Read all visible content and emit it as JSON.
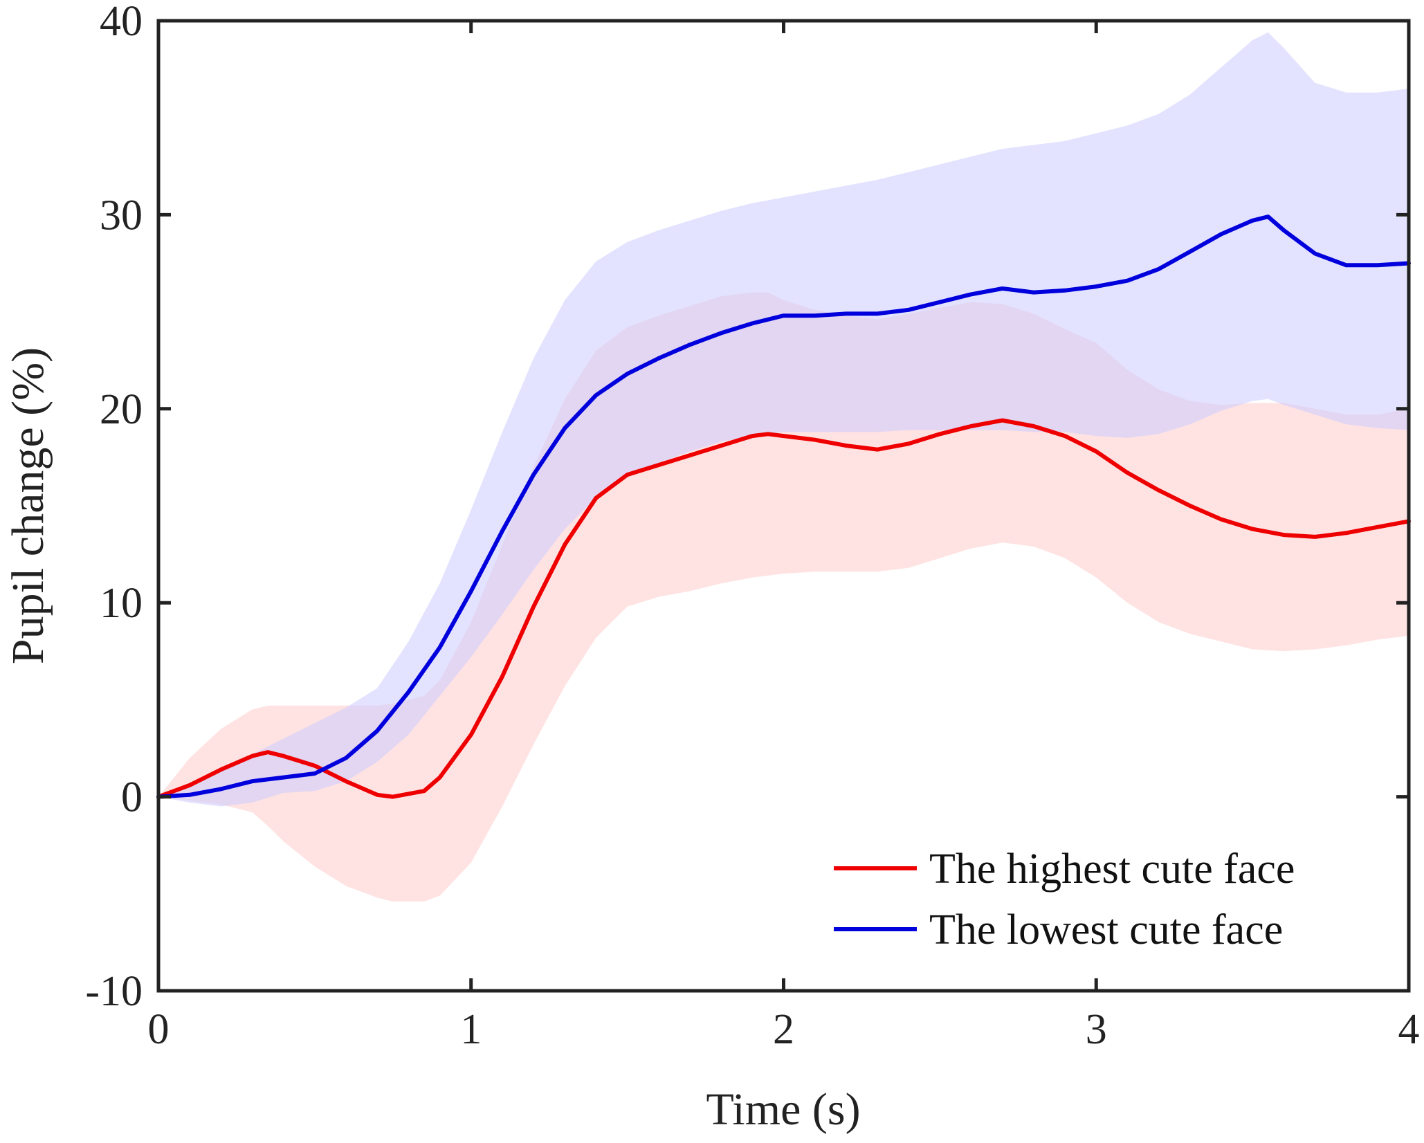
{
  "chart_data": {
    "type": "line",
    "title": "",
    "xlabel": "Time (s)",
    "ylabel": "Pupil change (%)",
    "xlim": [
      0,
      4
    ],
    "ylim": [
      -10,
      40
    ],
    "x_ticks": [
      0,
      1,
      2,
      3,
      4
    ],
    "x_tick_labels": [
      "0",
      "1",
      "2",
      "3",
      "4"
    ],
    "y_ticks": [
      -10,
      0,
      10,
      20,
      30,
      40
    ],
    "y_tick_labels": [
      "-10",
      "0",
      "10",
      "20",
      "30",
      "40"
    ],
    "grid": false,
    "legend_position": "bottom-right",
    "series": [
      {
        "name": "The highest cute face",
        "color": "#ee0000",
        "band_color": "#ffcccc",
        "x": [
          0,
          0.1,
          0.2,
          0.3,
          0.35,
          0.4,
          0.5,
          0.6,
          0.7,
          0.75,
          0.85,
          0.9,
          1.0,
          1.1,
          1.2,
          1.3,
          1.4,
          1.5,
          1.6,
          1.7,
          1.8,
          1.9,
          1.95,
          2.0,
          2.1,
          2.2,
          2.3,
          2.4,
          2.5,
          2.6,
          2.7,
          2.8,
          2.9,
          3.0,
          3.1,
          3.2,
          3.3,
          3.4,
          3.5,
          3.6,
          3.7,
          3.8,
          3.9,
          4.0
        ],
        "mean": [
          0,
          0.6,
          1.4,
          2.1,
          2.3,
          2.1,
          1.6,
          0.8,
          0.1,
          0.0,
          0.3,
          1.0,
          3.2,
          6.2,
          9.8,
          13.0,
          15.4,
          16.6,
          17.1,
          17.6,
          18.1,
          18.6,
          18.7,
          18.6,
          18.4,
          18.1,
          17.9,
          18.2,
          18.7,
          19.1,
          19.4,
          19.1,
          18.6,
          17.8,
          16.7,
          15.8,
          15.0,
          14.3,
          13.8,
          13.5,
          13.4,
          13.6,
          13.9,
          14.2
        ],
        "upper": [
          0,
          2.0,
          3.5,
          4.5,
          4.7,
          4.7,
          4.7,
          4.7,
          4.7,
          4.8,
          5.2,
          6.0,
          9.0,
          13.0,
          17.0,
          20.5,
          23.0,
          24.2,
          24.8,
          25.3,
          25.8,
          26.0,
          26.0,
          25.6,
          25.1,
          24.8,
          24.6,
          24.9,
          25.2,
          25.5,
          25.4,
          24.9,
          24.1,
          23.4,
          22.0,
          21.0,
          20.4,
          20.2,
          20.3,
          20.3,
          20.0,
          19.7,
          19.7,
          20.0
        ],
        "lower": [
          0,
          -0.2,
          -0.4,
          -0.8,
          -1.5,
          -2.3,
          -3.6,
          -4.6,
          -5.2,
          -5.4,
          -5.4,
          -5.1,
          -3.4,
          -0.5,
          2.7,
          5.7,
          8.2,
          9.8,
          10.3,
          10.6,
          11.0,
          11.3,
          11.4,
          11.5,
          11.6,
          11.6,
          11.6,
          11.8,
          12.3,
          12.8,
          13.1,
          12.9,
          12.3,
          11.3,
          10.0,
          9.0,
          8.4,
          8.0,
          7.6,
          7.5,
          7.6,
          7.8,
          8.1,
          8.3
        ]
      },
      {
        "name": "The lowest cute face",
        "color": "#0000dd",
        "band_color": "#ccccff",
        "x": [
          0,
          0.1,
          0.2,
          0.3,
          0.4,
          0.5,
          0.6,
          0.7,
          0.8,
          0.9,
          1.0,
          1.1,
          1.2,
          1.3,
          1.4,
          1.5,
          1.6,
          1.7,
          1.8,
          1.9,
          2.0,
          2.1,
          2.2,
          2.3,
          2.4,
          2.5,
          2.6,
          2.7,
          2.8,
          2.9,
          3.0,
          3.1,
          3.2,
          3.3,
          3.4,
          3.5,
          3.55,
          3.6,
          3.7,
          3.8,
          3.9,
          4.0
        ],
        "mean": [
          0,
          0.1,
          0.4,
          0.8,
          1.0,
          1.2,
          2.0,
          3.4,
          5.4,
          7.7,
          10.6,
          13.7,
          16.6,
          19.0,
          20.7,
          21.8,
          22.6,
          23.3,
          23.9,
          24.4,
          24.8,
          24.8,
          24.9,
          24.9,
          25.1,
          25.5,
          25.9,
          26.2,
          26.0,
          26.1,
          26.3,
          26.6,
          27.2,
          28.1,
          29.0,
          29.7,
          29.9,
          29.2,
          28.0,
          27.4,
          27.4,
          27.5
        ],
        "upper": [
          0,
          0.6,
          1.4,
          2.2,
          3.0,
          3.8,
          4.6,
          5.6,
          8.0,
          11.0,
          14.8,
          18.8,
          22.6,
          25.6,
          27.6,
          28.6,
          29.2,
          29.7,
          30.2,
          30.6,
          30.9,
          31.2,
          31.5,
          31.8,
          32.2,
          32.6,
          33.0,
          33.4,
          33.6,
          33.8,
          34.2,
          34.6,
          35.2,
          36.2,
          37.6,
          39.0,
          39.4,
          38.6,
          36.8,
          36.3,
          36.3,
          36.5
        ],
        "lower": [
          0,
          -0.3,
          -0.5,
          -0.3,
          0.2,
          0.3,
          0.8,
          1.8,
          3.2,
          5.2,
          7.2,
          9.4,
          11.7,
          13.8,
          15.4,
          16.6,
          17.2,
          17.8,
          18.3,
          18.6,
          18.8,
          18.8,
          18.8,
          18.8,
          18.9,
          18.9,
          18.9,
          18.9,
          18.8,
          18.8,
          18.6,
          18.5,
          18.7,
          19.2,
          19.9,
          20.4,
          20.5,
          20.2,
          19.7,
          19.2,
          19.0,
          18.9
        ]
      }
    ]
  }
}
